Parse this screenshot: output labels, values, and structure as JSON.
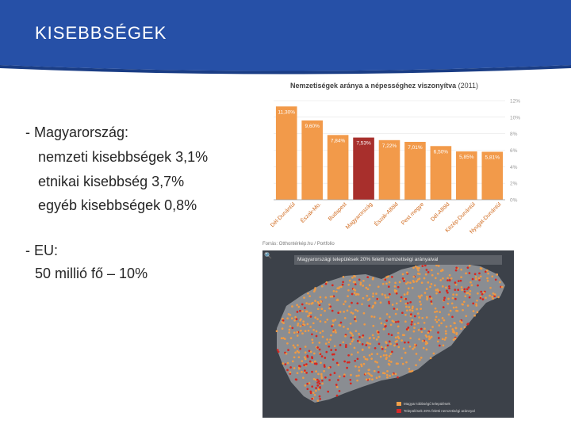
{
  "slide": {
    "title": "KISEBBSÉGEK"
  },
  "bullets": [
    "- Magyarország:",
    "nemzeti kisebbségek 3,1%",
    "etnikai kisebbség 3,7%",
    "egyéb kisebbségek 0,8%",
    "- EU:",
    "50 millió fő – 10%"
  ],
  "chart": {
    "title_bold": "Nemzetiségek aránya a népességhez viszonyítva",
    "title_year": " (2011)",
    "source": "Forrás: Otthontérkép.hu / Portfolio",
    "colors": {
      "bar": "#f29a4a",
      "highlight": "#a82f2c",
      "grid": "#e6e6e6",
      "axis": "#9a9a9a"
    }
  },
  "chart_data": {
    "type": "bar",
    "title": "Nemzetiségek aránya a népességhez viszonyítva (2011)",
    "categories": [
      "Dél-Dunántúl",
      "Észak-Mo.",
      "Budapest",
      "Magyarország",
      "Észak-Alföld",
      "Pest megye",
      "Dél-Alföld",
      "Közép-Dunántúl",
      "Nyugat-Dunántúl"
    ],
    "values": [
      11.3,
      9.6,
      7.84,
      7.53,
      7.22,
      7.01,
      6.5,
      5.85,
      5.81
    ],
    "data_labels": [
      "11,30%",
      "9,60%",
      "7,84%",
      "7,53%",
      "7,22%",
      "7,01%",
      "6,50%",
      "5,85%",
      "5,81%"
    ],
    "highlight_index": 3,
    "y_ticks": [
      "0%",
      "2%",
      "4%",
      "6%",
      "8%",
      "10%",
      "12%"
    ],
    "ylim": [
      0,
      12
    ],
    "grid": true
  },
  "map": {
    "title": "Magyarországi települések 20% feletti nemzetiségi arányaival",
    "legend": [
      {
        "label": "Magyar többségű települések",
        "color": "#f0a04a"
      },
      {
        "label": "Települések 20% feletti nemzetiségi aránnyal",
        "color": "#d62a2a"
      }
    ],
    "colors": {
      "background": "#3c4149",
      "land": "#8a8d92",
      "orange_dot": "#ee9a45",
      "red_dot": "#d8261f"
    }
  }
}
